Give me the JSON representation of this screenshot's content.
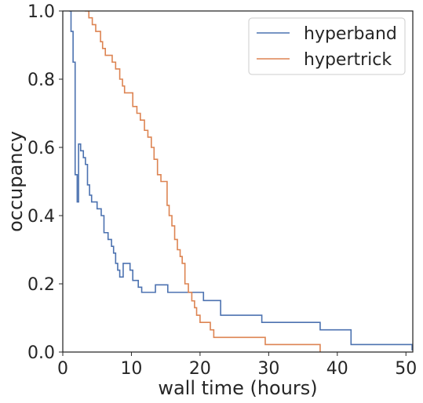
{
  "chart_data": {
    "type": "line",
    "xlabel": "wall time (hours)",
    "ylabel": "occupancy",
    "xlim": [
      0,
      51
    ],
    "ylim": [
      0,
      1.0
    ],
    "xticks": [
      0,
      10,
      20,
      30,
      40,
      50
    ],
    "yticks": [
      0.0,
      0.2,
      0.4,
      0.6,
      0.8,
      1.0
    ],
    "xtick_labels": [
      "0",
      "10",
      "20",
      "30",
      "40",
      "50"
    ],
    "ytick_labels": [
      "0.0",
      "0.2",
      "0.4",
      "0.6",
      "0.8",
      "1.0"
    ],
    "grid": false,
    "legend": "top-right",
    "series": [
      {
        "name": "hyperband",
        "color": "#4c72b0",
        "step": true,
        "points": [
          [
            0.9,
            1.0
          ],
          [
            1.2,
            0.94
          ],
          [
            1.5,
            0.85
          ],
          [
            1.8,
            0.52
          ],
          [
            2.1,
            0.44
          ],
          [
            2.3,
            0.61
          ],
          [
            2.6,
            0.59
          ],
          [
            3.0,
            0.57
          ],
          [
            3.3,
            0.55
          ],
          [
            3.6,
            0.49
          ],
          [
            3.9,
            0.46
          ],
          [
            4.2,
            0.44
          ],
          [
            5.0,
            0.42
          ],
          [
            5.6,
            0.4
          ],
          [
            6.0,
            0.35
          ],
          [
            6.6,
            0.33
          ],
          [
            7.1,
            0.31
          ],
          [
            7.4,
            0.29
          ],
          [
            7.7,
            0.26
          ],
          [
            8.0,
            0.24
          ],
          [
            8.3,
            0.22
          ],
          [
            8.8,
            0.26
          ],
          [
            9.8,
            0.24
          ],
          [
            10.2,
            0.21
          ],
          [
            11.0,
            0.19
          ],
          [
            11.5,
            0.175
          ],
          [
            13.5,
            0.197
          ],
          [
            15.3,
            0.175
          ],
          [
            20.5,
            0.151
          ],
          [
            23.0,
            0.108
          ],
          [
            29.0,
            0.087
          ],
          [
            37.5,
            0.065
          ],
          [
            42.0,
            0.022
          ],
          [
            50.9,
            0.005
          ]
        ]
      },
      {
        "name": "hypertrick",
        "color": "#dd8452",
        "step": true,
        "points": [
          [
            3.2,
            1.0
          ],
          [
            3.8,
            0.98
          ],
          [
            4.3,
            0.96
          ],
          [
            4.8,
            0.94
          ],
          [
            5.5,
            0.91
          ],
          [
            5.8,
            0.89
          ],
          [
            6.2,
            0.87
          ],
          [
            7.2,
            0.85
          ],
          [
            7.7,
            0.83
          ],
          [
            8.3,
            0.8
          ],
          [
            8.7,
            0.78
          ],
          [
            9.0,
            0.76
          ],
          [
            10.2,
            0.72
          ],
          [
            10.8,
            0.7
          ],
          [
            11.3,
            0.68
          ],
          [
            11.9,
            0.65
          ],
          [
            12.4,
            0.63
          ],
          [
            12.9,
            0.6
          ],
          [
            13.3,
            0.565
          ],
          [
            13.8,
            0.52
          ],
          [
            14.3,
            0.5
          ],
          [
            15.2,
            0.43
          ],
          [
            15.5,
            0.4
          ],
          [
            15.9,
            0.37
          ],
          [
            16.3,
            0.33
          ],
          [
            16.7,
            0.3
          ],
          [
            17.1,
            0.28
          ],
          [
            17.4,
            0.26
          ],
          [
            17.8,
            0.2
          ],
          [
            18.3,
            0.175
          ],
          [
            18.8,
            0.15
          ],
          [
            19.2,
            0.13
          ],
          [
            19.5,
            0.108
          ],
          [
            20.0,
            0.087
          ],
          [
            21.5,
            0.065
          ],
          [
            22.0,
            0.043
          ],
          [
            29.5,
            0.022
          ],
          [
            37.5,
            0.0
          ]
        ]
      }
    ]
  }
}
